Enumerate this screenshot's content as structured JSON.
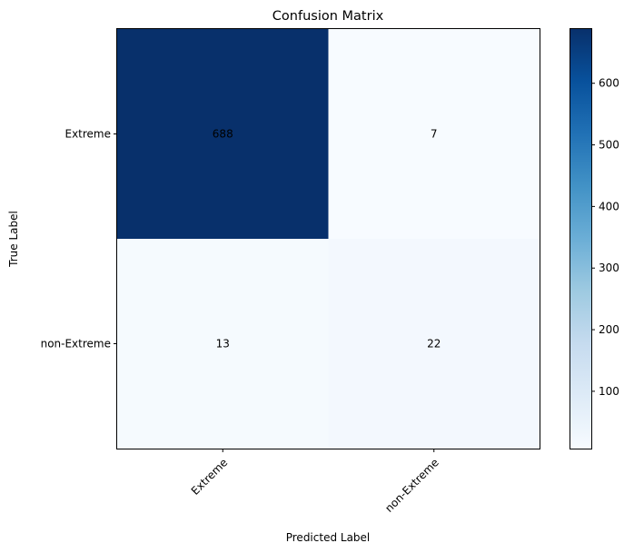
{
  "chart_data": {
    "type": "heatmap",
    "title": "Confusion Matrix",
    "xlabel": "Predicted Label",
    "ylabel": "True Label",
    "x_categories": [
      "Extreme",
      "non-Extreme"
    ],
    "y_categories": [
      "Extreme",
      "non-Extreme"
    ],
    "matrix": [
      [
        688,
        7
      ],
      [
        13,
        22
      ]
    ],
    "colormap": "Blues",
    "colorbar": {
      "range": [
        7,
        688
      ],
      "ticks": [
        100,
        200,
        300,
        400,
        500,
        600
      ]
    },
    "x_tick_rotation": 45,
    "grid": false
  }
}
